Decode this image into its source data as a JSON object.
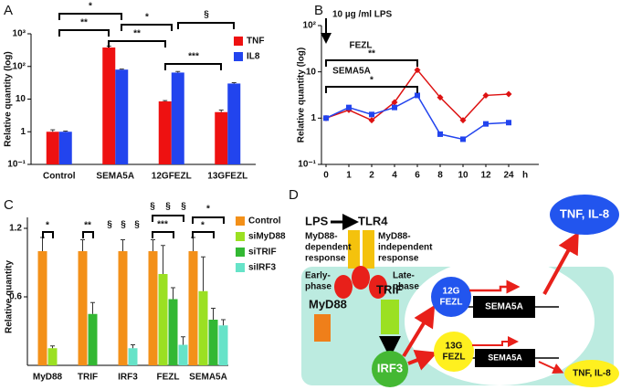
{
  "chart_data": [
    {
      "type": "bar",
      "panel": "A",
      "ylabel": "Relative quantity (log)",
      "log_scale": true,
      "categories": [
        "Control",
        "SEMA5A",
        "12GFEZL",
        "13GFEZL"
      ],
      "series": [
        {
          "name": "TNF",
          "color": "#ee1111",
          "values": [
            1,
            380,
            8.5,
            4
          ],
          "errors": [
            0.15,
            40,
            0.5,
            0.6
          ]
        },
        {
          "name": "IL8",
          "color": "#2244ee",
          "values": [
            1,
            80,
            65,
            30
          ],
          "errors": [
            0.05,
            3,
            5,
            2
          ]
        }
      ],
      "ylim": [
        0.1,
        1000
      ],
      "yticks": [
        {
          "value": 0.1,
          "label": "10⁻¹"
        },
        1,
        10,
        {
          "value": 100,
          "label": "10²"
        },
        {
          "value": 1000,
          "label": "10³"
        }
      ],
      "legend": "upper right",
      "annotations": [
        "**",
        "*",
        "*",
        "**",
        "***",
        "§"
      ]
    },
    {
      "type": "line",
      "panel": "B",
      "ylabel": "Relative quantity (log)",
      "log_scale": true,
      "xlabel": "h",
      "categories": [
        "0",
        "1",
        "2",
        "4",
        "6",
        "8",
        "10",
        "12",
        "24"
      ],
      "series": [
        {
          "color": "#dd1111",
          "marker": "diamond",
          "values": [
            1,
            1.5,
            0.9,
            2.2,
            11,
            2.8,
            0.9,
            3.1,
            3.3
          ]
        },
        {
          "color": "#2244ee",
          "marker": "square",
          "values": [
            1,
            1.7,
            1.2,
            1.7,
            3.1,
            0.45,
            0.35,
            0.75,
            0.8
          ]
        }
      ],
      "ylim": [
        0.1,
        100
      ],
      "yticks": [
        {
          "value": 0.1,
          "label": "10⁻¹"
        },
        1,
        10,
        {
          "value": 100,
          "label": "10²"
        }
      ],
      "annotations": [
        "10 µg /ml LPS",
        "FEZL",
        "**",
        "SEMA5A",
        "*"
      ]
    },
    {
      "type": "bar",
      "panel": "C",
      "ylabel": "Relative quantity",
      "categories": [
        "MyD88",
        "TRIF",
        "IRF3",
        "FEZL",
        "SEMA5A"
      ],
      "series": [
        {
          "name": "Control",
          "color": "#f39019",
          "values": [
            1,
            1,
            1,
            1,
            1
          ],
          "errors": [
            0.12,
            0.1,
            0.1,
            0.1,
            0.12
          ]
        },
        {
          "name": "siMyD88",
          "color": "#9be022",
          "values": [
            0.15,
            null,
            null,
            0.8,
            0.65
          ],
          "errors": [
            0.02,
            null,
            null,
            0.25,
            0.3
          ]
        },
        {
          "name": "siTRIF",
          "color": "#33b833",
          "values": [
            null,
            0.45,
            null,
            0.58,
            0.4
          ],
          "errors": [
            null,
            0.1,
            null,
            0.1,
            0.1
          ]
        },
        {
          "name": "siIRF3",
          "color": "#66e3c8",
          "values": [
            null,
            null,
            0.15,
            0.18,
            0.35
          ],
          "errors": [
            null,
            null,
            0.03,
            0.07,
            0.05
          ]
        }
      ],
      "ylim": [
        0,
        1.2
      ],
      "yticks": [
        0.6,
        1.2
      ],
      "legend": "upper right",
      "annotations": [
        "*",
        "**",
        "§",
        "§",
        "§",
        "***",
        "§",
        "§",
        "§",
        "*",
        "*"
      ]
    }
  ],
  "diagram": {
    "panel": "D",
    "ligand": "LPS",
    "receptor": "TLR4",
    "left_response": [
      "MyD88-",
      "dependent",
      "response"
    ],
    "right_response": [
      "MyD88-",
      "independent",
      "response"
    ],
    "early": [
      "Early-",
      "phase"
    ],
    "late": [
      "Late-",
      "phase"
    ],
    "adaptor_left": "MyD88",
    "adaptor_right": "TRIF",
    "factor": "IRF3",
    "gene_upper": [
      "12G",
      "FEZL"
    ],
    "gene_lower": [
      "13G",
      "FEZL"
    ],
    "target_upper": "SEMA5A",
    "target_lower": "SEMA5A",
    "output_upper": "TNF, IL-8",
    "output_lower": "TNF, IL-8"
  }
}
